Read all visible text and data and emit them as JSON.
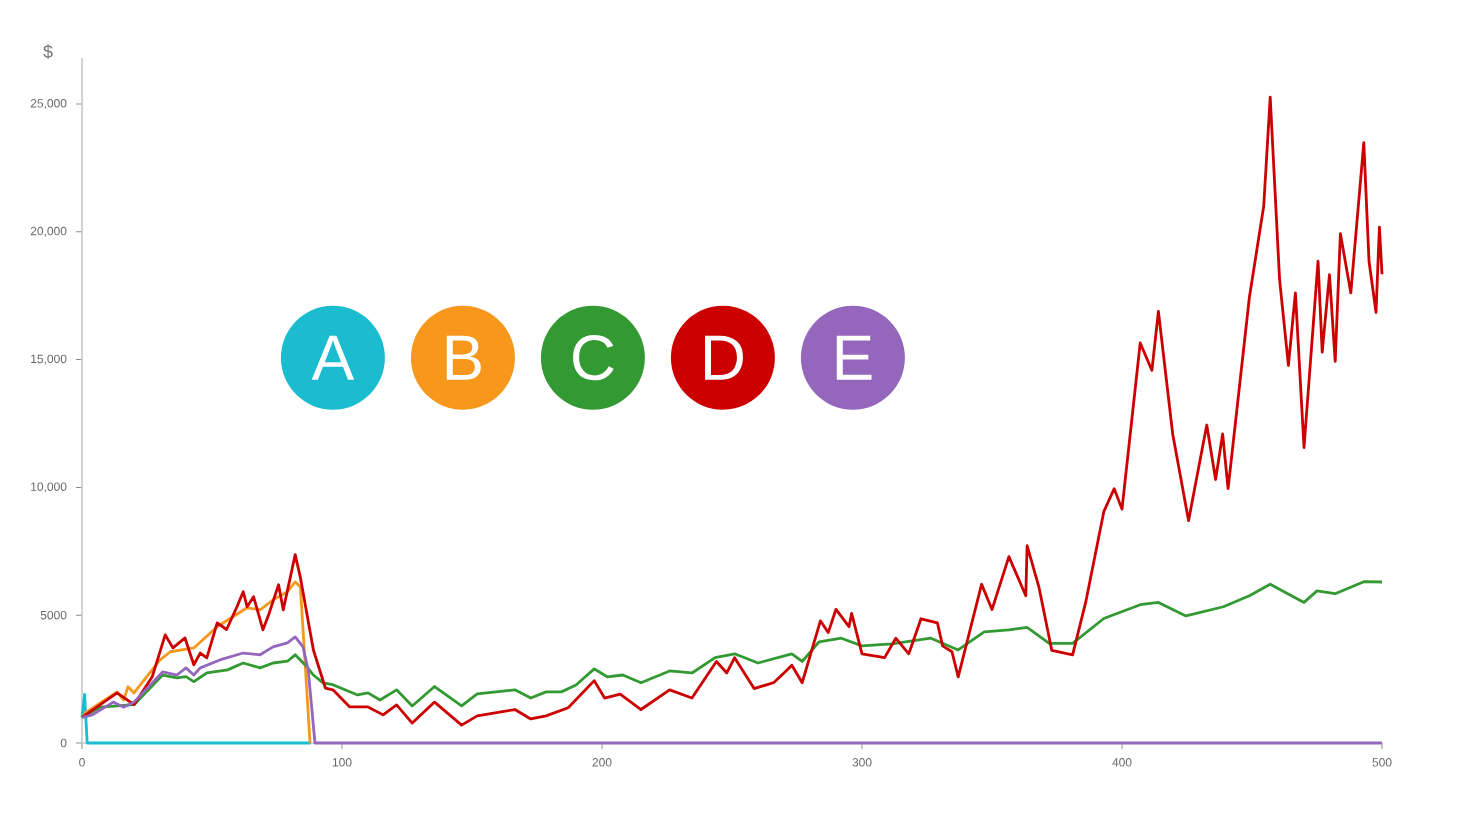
{
  "chart_data": {
    "type": "line",
    "ylabel": "$",
    "xlim": [
      0,
      500
    ],
    "xticks": [
      0,
      100,
      200,
      300,
      400,
      500
    ],
    "ylim": [
      0,
      26800
    ],
    "yticks": [
      0,
      5000,
      {
        "value": 10000,
        "label": "10,000"
      },
      {
        "value": 15000,
        "label": "15,000"
      },
      {
        "value": 20000,
        "label": "20,000"
      },
      {
        "value": 25000,
        "label": "25,000"
      }
    ],
    "legend": "left",
    "marker": "none",
    "line_style": "solid",
    "grid": false,
    "series": [
      {
        "name": "A",
        "color": "#1bbccf",
        "x": [
          0,
          1,
          2,
          88
        ],
        "values": [
          1000,
          1900,
          0,
          0
        ]
      },
      {
        "name": "B",
        "color": "#f7981d",
        "x": [
          0,
          1.2,
          13.5,
          16,
          17.7,
          20,
          30,
          34,
          43,
          46.5,
          52,
          58,
          63.5,
          68.5,
          73.5,
          79,
          82,
          84,
          87.7
        ],
        "values": [
          1000,
          1175,
          2000,
          1680,
          2200,
          1960,
          3250,
          3570,
          3720,
          4040,
          4550,
          4940,
          5290,
          5210,
          5600,
          5920,
          6300,
          6100,
          0
        ]
      },
      {
        "name": "C",
        "color": "#339933",
        "x": [
          0,
          7,
          20,
          31,
          36.5,
          40,
          43,
          48,
          56,
          62,
          68.5,
          73.5,
          79,
          82,
          86.5,
          89,
          92.7,
          96.5,
          106,
          110,
          114.6,
          121,
          127,
          135.6,
          146,
          152,
          166.5,
          172.6,
          178.5,
          184.4,
          190,
          197,
          202,
          208,
          215,
          226,
          234.6,
          243.5,
          251,
          260,
          273,
          277,
          283.5,
          292,
          300,
          311.5,
          326.5,
          337,
          347,
          356.5,
          363.5,
          372,
          381,
          393,
          407,
          414,
          424.6,
          439,
          449,
          457,
          470,
          475,
          482,
          493,
          500
        ],
        "values": [
          1000,
          1400,
          1500,
          2660,
          2550,
          2600,
          2400,
          2740,
          2860,
          3130,
          2940,
          3130,
          3200,
          3450,
          2980,
          2660,
          2350,
          2280,
          1880,
          1960,
          1680,
          2080,
          1450,
          2210,
          1450,
          1920,
          2080,
          1760,
          2000,
          2000,
          2270,
          2900,
          2590,
          2660,
          2360,
          2820,
          2740,
          3340,
          3490,
          3130,
          3490,
          3190,
          3960,
          4100,
          3800,
          3880,
          4100,
          3640,
          4350,
          4430,
          4520,
          3900,
          3900,
          4870,
          5410,
          5500,
          4970,
          5330,
          5760,
          6210,
          5500,
          5950,
          5840,
          6310,
          6300
        ]
      },
      {
        "name": "D",
        "color": "#cc0000",
        "x": [
          0,
          13.5,
          20,
          27,
          32,
          35,
          39.6,
          43,
          45.5,
          48,
          52,
          55.6,
          59.6,
          62,
          63.5,
          66,
          69.6,
          72,
          75.6,
          77.4,
          82,
          84,
          89,
          93.6,
          96.5,
          103,
          110,
          115.8,
          121,
          127,
          135.6,
          146,
          152,
          166.5,
          172.6,
          178.5,
          187,
          197,
          201,
          207,
          215,
          226,
          234.6,
          244,
          248,
          251,
          258.5,
          266,
          270,
          273,
          277,
          284,
          287,
          290,
          295,
          296,
          300,
          308.7,
          313,
          318,
          322.7,
          329,
          331,
          334.6,
          337,
          346,
          350,
          356.5,
          363,
          363.5,
          368,
          373,
          381,
          386,
          393,
          397,
          400,
          407,
          411.5,
          414,
          419.5,
          425.6,
          432.6,
          436,
          438.7,
          440.8,
          449,
          454.5,
          457,
          460.6,
          464,
          466.7,
          470,
          475.4,
          477,
          479.8,
          482,
          484,
          488,
          493,
          495,
          497.7,
          499,
          500
        ],
        "values": [
          1000,
          1960,
          1500,
          2590,
          4230,
          3720,
          4110,
          3060,
          3520,
          3330,
          4700,
          4440,
          5330,
          5920,
          5330,
          5720,
          4430,
          5080,
          6190,
          5210,
          7370,
          6470,
          3640,
          2150,
          2080,
          1410,
          1410,
          1100,
          1490,
          780,
          1600,
          700,
          1060,
          1310,
          940,
          1060,
          1380,
          2440,
          1760,
          1910,
          1310,
          2080,
          1760,
          3190,
          2740,
          3340,
          2130,
          2360,
          2740,
          3040,
          2360,
          4780,
          4320,
          5230,
          4550,
          5070,
          3490,
          3340,
          4100,
          3490,
          4860,
          4700,
          3800,
          3570,
          2590,
          6210,
          5220,
          7290,
          5760,
          7720,
          6120,
          3620,
          3450,
          5490,
          9050,
          9950,
          9150,
          15650,
          14580,
          16890,
          12090,
          8700,
          12440,
          10310,
          12090,
          9950,
          17440,
          21000,
          25270,
          18140,
          14770,
          17610,
          11560,
          18850,
          15290,
          18320,
          14930,
          19930,
          17610,
          23490,
          18850,
          16850,
          20180,
          18340
        ]
      },
      {
        "name": "E",
        "color": "#9467bd",
        "x": [
          0,
          4,
          12,
          16,
          20,
          31,
          36.5,
          40,
          43,
          45.5,
          53,
          62,
          68.5,
          73.5,
          79,
          82,
          85,
          87,
          89.6,
          500
        ],
        "values": [
          1000,
          1100,
          1600,
          1400,
          1600,
          2780,
          2660,
          2940,
          2660,
          2940,
          3250,
          3520,
          3450,
          3760,
          3920,
          4150,
          3760,
          2860,
          0,
          0
        ]
      }
    ]
  }
}
